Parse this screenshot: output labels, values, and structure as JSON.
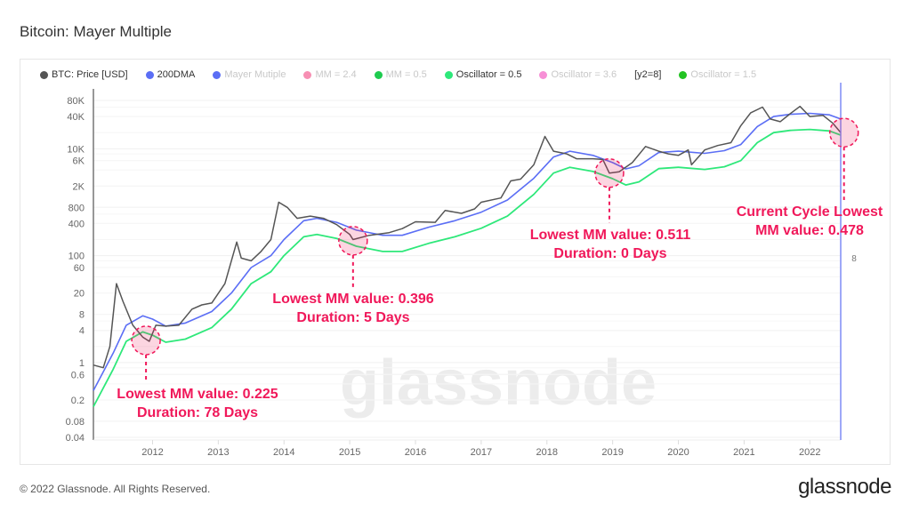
{
  "title": "Bitcoin: Mayer Multiple",
  "legend": [
    {
      "label": "BTC: Price [USD]",
      "color": "#555555",
      "active": true
    },
    {
      "label": "200DMA",
      "color": "#5b6ef5",
      "active": true
    },
    {
      "label": "Mayer Mutiple",
      "color": "#5b6ef5",
      "active": false
    },
    {
      "label": "MM = 2.4",
      "color": "#f78fb3",
      "active": false
    },
    {
      "label": "MM = 0.5",
      "color": "#1ecb4f",
      "active": false
    },
    {
      "label": "Oscillator = 0.5",
      "color": "#2ee87a",
      "active": true
    },
    {
      "label": "Oscillator = 3.6",
      "color": "#f78fd6",
      "active": false
    },
    {
      "label": "[y2=8]",
      "color": null,
      "active": true
    },
    {
      "label": "Oscillator = 1.5",
      "color": "#22c322",
      "active": false
    }
  ],
  "footer": "© 2022 Glassnode. All Rights Reserved.",
  "logo": "glassnode",
  "watermark": "glassnode",
  "chart_data": {
    "type": "line",
    "yscale": "log",
    "ylim": [
      0.04,
      80000
    ],
    "xlim": [
      2011.1,
      2022.47
    ],
    "yticks": [
      {
        "v": 80000,
        "label": "80K"
      },
      {
        "v": 40000,
        "label": "40K"
      },
      {
        "v": 10000,
        "label": "10K"
      },
      {
        "v": 6000,
        "label": "6K"
      },
      {
        "v": 2000,
        "label": "2K"
      },
      {
        "v": 800,
        "label": "800"
      },
      {
        "v": 400,
        "label": "400"
      },
      {
        "v": 100,
        "label": "100"
      },
      {
        "v": 60,
        "label": "60"
      },
      {
        "v": 20,
        "label": "20"
      },
      {
        "v": 8,
        "label": "8"
      },
      {
        "v": 4,
        "label": "4"
      },
      {
        "v": 1,
        "label": "1"
      },
      {
        "v": 0.6,
        "label": "0.6"
      },
      {
        "v": 0.2,
        "label": "0.2"
      },
      {
        "v": 0.08,
        "label": "0.08"
      },
      {
        "v": 0.04,
        "label": "0.04"
      }
    ],
    "xticks": [
      "2012",
      "2013",
      "2014",
      "2015",
      "2016",
      "2017",
      "2018",
      "2019",
      "2020",
      "2021",
      "2022"
    ],
    "y2_tick": "8",
    "grid": true,
    "legend_position": "top",
    "series": [
      {
        "name": "BTC: Price [USD]",
        "color": "#555555",
        "points": [
          [
            2011.1,
            0.9
          ],
          [
            2011.25,
            0.8
          ],
          [
            2011.35,
            2
          ],
          [
            2011.45,
            30
          ],
          [
            2011.55,
            14
          ],
          [
            2011.7,
            5
          ],
          [
            2011.85,
            3
          ],
          [
            2011.95,
            2.5
          ],
          [
            2012.05,
            5
          ],
          [
            2012.2,
            4.8
          ],
          [
            2012.4,
            5
          ],
          [
            2012.6,
            10
          ],
          [
            2012.75,
            12
          ],
          [
            2012.9,
            13
          ],
          [
            2013.1,
            30
          ],
          [
            2013.28,
            180
          ],
          [
            2013.35,
            90
          ],
          [
            2013.5,
            80
          ],
          [
            2013.65,
            120
          ],
          [
            2013.8,
            200
          ],
          [
            2013.92,
            1000
          ],
          [
            2014.05,
            800
          ],
          [
            2014.2,
            500
          ],
          [
            2014.4,
            550
          ],
          [
            2014.6,
            500
          ],
          [
            2014.8,
            380
          ],
          [
            2015.0,
            250
          ],
          [
            2015.05,
            200
          ],
          [
            2015.3,
            240
          ],
          [
            2015.6,
            270
          ],
          [
            2015.8,
            320
          ],
          [
            2016.0,
            430
          ],
          [
            2016.3,
            420
          ],
          [
            2016.45,
            700
          ],
          [
            2016.7,
            620
          ],
          [
            2016.9,
            750
          ],
          [
            2017.0,
            1000
          ],
          [
            2017.3,
            1200
          ],
          [
            2017.45,
            2500
          ],
          [
            2017.6,
            2700
          ],
          [
            2017.8,
            5000
          ],
          [
            2017.97,
            17000
          ],
          [
            2018.1,
            9000
          ],
          [
            2018.3,
            8000
          ],
          [
            2018.45,
            6500
          ],
          [
            2018.7,
            6500
          ],
          [
            2018.85,
            6300
          ],
          [
            2018.95,
            3500
          ],
          [
            2019.1,
            3700
          ],
          [
            2019.3,
            5500
          ],
          [
            2019.5,
            11000
          ],
          [
            2019.7,
            9000
          ],
          [
            2019.85,
            8000
          ],
          [
            2020.0,
            7500
          ],
          [
            2020.15,
            9500
          ],
          [
            2020.2,
            5000
          ],
          [
            2020.4,
            9500
          ],
          [
            2020.6,
            11500
          ],
          [
            2020.8,
            13000
          ],
          [
            2020.95,
            27000
          ],
          [
            2021.1,
            47000
          ],
          [
            2021.28,
            60000
          ],
          [
            2021.4,
            36000
          ],
          [
            2021.55,
            32000
          ],
          [
            2021.7,
            45000
          ],
          [
            2021.85,
            62000
          ],
          [
            2022.0,
            40000
          ],
          [
            2022.2,
            42000
          ],
          [
            2022.35,
            30000
          ],
          [
            2022.47,
            20000
          ]
        ]
      },
      {
        "name": "200DMA",
        "color": "#5b6ef5",
        "points": [
          [
            2011.1,
            0.3
          ],
          [
            2011.4,
            1.5
          ],
          [
            2011.6,
            5
          ],
          [
            2011.85,
            7.5
          ],
          [
            2012.0,
            6.5
          ],
          [
            2012.2,
            4.8
          ],
          [
            2012.5,
            5.5
          ],
          [
            2012.9,
            9
          ],
          [
            2013.2,
            20
          ],
          [
            2013.5,
            60
          ],
          [
            2013.8,
            100
          ],
          [
            2014.0,
            200
          ],
          [
            2014.3,
            450
          ],
          [
            2014.5,
            500
          ],
          [
            2014.8,
            420
          ],
          [
            2015.1,
            300
          ],
          [
            2015.5,
            240
          ],
          [
            2015.8,
            240
          ],
          [
            2016.2,
            340
          ],
          [
            2016.6,
            450
          ],
          [
            2017.0,
            650
          ],
          [
            2017.4,
            1100
          ],
          [
            2017.8,
            2800
          ],
          [
            2018.1,
            7000
          ],
          [
            2018.35,
            9000
          ],
          [
            2018.7,
            7500
          ],
          [
            2019.0,
            5500
          ],
          [
            2019.2,
            4200
          ],
          [
            2019.4,
            4800
          ],
          [
            2019.7,
            8500
          ],
          [
            2020.0,
            9000
          ],
          [
            2020.4,
            8200
          ],
          [
            2020.7,
            9200
          ],
          [
            2020.95,
            12000
          ],
          [
            2021.2,
            26000
          ],
          [
            2021.45,
            40000
          ],
          [
            2021.7,
            44000
          ],
          [
            2022.0,
            46000
          ],
          [
            2022.3,
            43000
          ],
          [
            2022.47,
            36000
          ]
        ]
      },
      {
        "name": "Oscillator = 0.5",
        "color": "#2ee87a",
        "multiplier_of_200DMA": 0.5
      }
    ],
    "annotations": [
      {
        "x": 2011.9,
        "y": 2.6,
        "lines": [
          "Lowest MM value: 0.225",
          "Duration: 78 Days"
        ]
      },
      {
        "x": 2015.05,
        "y": 190,
        "lines": [
          "Lowest MM value: 0.396",
          "Duration: 5 Days"
        ]
      },
      {
        "x": 2018.95,
        "y": 3500,
        "lines": [
          "Lowest MM value: 0.511",
          "Duration: 0 Days"
        ]
      },
      {
        "x": 2022.55,
        "y": 20000,
        "lines": [
          "Current Cycle Lowest",
          "MM value: 0.478"
        ]
      }
    ],
    "annotation_color": "#f0185a"
  }
}
